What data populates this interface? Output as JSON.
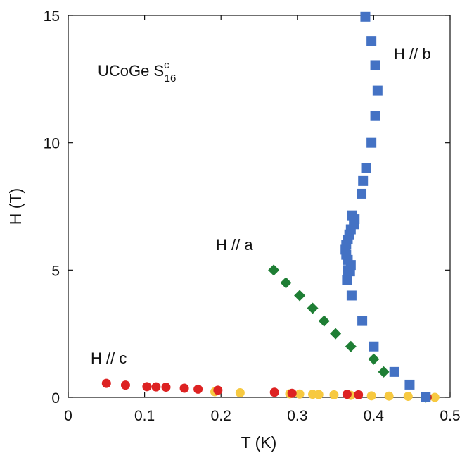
{
  "chart_data": {
    "type": "scatter",
    "title": "",
    "xlabel": "T  (K)",
    "ylabel": "H  (T)",
    "xlim": [
      0,
      0.5
    ],
    "ylim": [
      0,
      15
    ],
    "xticks": [
      0,
      0.1,
      0.2,
      0.3,
      0.4,
      0.5
    ],
    "xtick_labels": [
      "0",
      "0.1",
      "0.2",
      "0.3",
      "0.4",
      "0.5"
    ],
    "yticks": [
      0,
      5,
      10,
      15
    ],
    "ytick_labels": [
      "0",
      "5",
      "10",
      "15"
    ],
    "grid": false,
    "legend": "none",
    "annotation": {
      "main": "UCoGe  S",
      "sup": "c",
      "sub": "16"
    },
    "series": [
      {
        "name": "H // b",
        "marker": "square",
        "color": "#4472C4",
        "x": [
          0.389,
          0.397,
          0.402,
          0.405,
          0.402,
          0.397,
          0.39,
          0.386,
          0.384,
          0.372,
          0.375,
          0.374,
          0.37,
          0.368,
          0.366,
          0.364,
          0.363,
          0.364,
          0.366,
          0.37,
          0.366,
          0.369,
          0.365,
          0.371,
          0.385,
          0.4,
          0.427,
          0.447,
          0.468
        ],
        "y": [
          14.95,
          14.0,
          13.05,
          12.05,
          11.05,
          10.0,
          9.0,
          8.5,
          8.0,
          7.15,
          7.0,
          6.8,
          6.6,
          6.4,
          6.2,
          6.0,
          5.8,
          5.6,
          5.4,
          5.2,
          5.0,
          4.95,
          4.6,
          4.0,
          3.0,
          2.0,
          1.0,
          0.5,
          0.0
        ]
      },
      {
        "name": "H // a",
        "marker": "diamond",
        "color": "#1E7E34",
        "x": [
          0.269,
          0.285,
          0.303,
          0.32,
          0.335,
          0.35,
          0.37,
          0.4,
          0.413,
          0.468
        ],
        "y": [
          5.0,
          4.5,
          4.0,
          3.5,
          3.0,
          2.5,
          2.0,
          1.5,
          1.0,
          0.0
        ]
      },
      {
        "name": "H // c",
        "marker": "circle",
        "color": "#DD2222",
        "x": [
          0.05,
          0.075,
          0.103,
          0.115,
          0.128,
          0.152,
          0.17,
          0.196,
          0.27,
          0.293,
          0.365,
          0.38,
          0.47
        ],
        "y": [
          0.55,
          0.48,
          0.42,
          0.41,
          0.4,
          0.36,
          0.32,
          0.28,
          0.2,
          0.16,
          0.12,
          0.1,
          0.0
        ]
      },
      {
        "name": "",
        "marker": "circle",
        "color": "#F7C940",
        "x": [
          0.192,
          0.225,
          0.29,
          0.303,
          0.32,
          0.328,
          0.348,
          0.37,
          0.397,
          0.42,
          0.445,
          0.48
        ],
        "y": [
          0.22,
          0.18,
          0.14,
          0.13,
          0.12,
          0.11,
          0.1,
          0.08,
          0.06,
          0.05,
          0.04,
          0.0
        ]
      }
    ]
  }
}
